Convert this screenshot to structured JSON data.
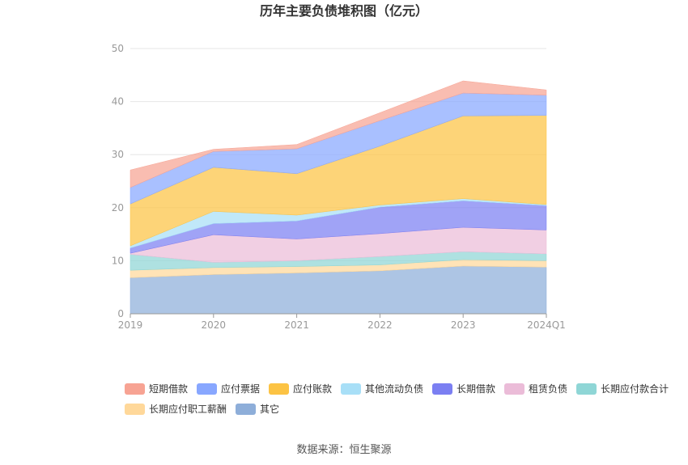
{
  "chart_data": {
    "type": "area",
    "stacked": true,
    "title": "历年主要负债堆积图（亿元）",
    "categories": [
      "2019",
      "2020",
      "2021",
      "2022",
      "2023",
      "2024Q1"
    ],
    "ylim": [
      0,
      50
    ],
    "yticks": [
      0,
      10,
      20,
      30,
      40,
      50
    ],
    "grid": true,
    "legend_position": "bottom",
    "series": [
      {
        "name": "其它",
        "color": "#8eaed9",
        "values": [
          6.8,
          7.4,
          7.7,
          8.1,
          9.0,
          8.8
        ]
      },
      {
        "name": "长期应付职工薪酬",
        "color": "#ffd89a",
        "values": [
          1.4,
          1.3,
          1.2,
          1.1,
          1.2,
          1.2
        ]
      },
      {
        "name": "长期应付款合计",
        "color": "#8fd6d6",
        "values": [
          3.0,
          1.0,
          1.1,
          1.6,
          1.5,
          1.3
        ]
      },
      {
        "name": "租赁负债",
        "color": "#ebbcd8",
        "values": [
          0.2,
          5.2,
          4.1,
          4.3,
          4.6,
          4.5
        ]
      },
      {
        "name": "长期借款",
        "color": "#7b7ff2",
        "values": [
          1.0,
          2.1,
          3.4,
          5.0,
          5.0,
          4.6
        ]
      },
      {
        "name": "其他流动负债",
        "color": "#a8dff7",
        "values": [
          0.4,
          2.3,
          1.1,
          0.4,
          0.4,
          0.2
        ]
      },
      {
        "name": "应付账款",
        "color": "#fcc344",
        "values": [
          7.9,
          8.3,
          7.8,
          11.1,
          15.6,
          16.8
        ]
      },
      {
        "name": "应付票据",
        "color": "#88a7ff",
        "values": [
          3.1,
          3.0,
          4.7,
          4.8,
          4.3,
          3.8
        ]
      },
      {
        "name": "短期借款",
        "color": "#f7a393",
        "values": [
          3.3,
          0.4,
          0.8,
          1.5,
          2.3,
          1.0
        ]
      }
    ],
    "legend_order": [
      "短期借款",
      "应付票据",
      "应付账款",
      "其他流动负债",
      "长期借款",
      "租赁负债",
      "长期应付款合计",
      "长期应付职工薪酬",
      "其它"
    ]
  },
  "footer": {
    "source": "数据来源：恒生聚源"
  }
}
